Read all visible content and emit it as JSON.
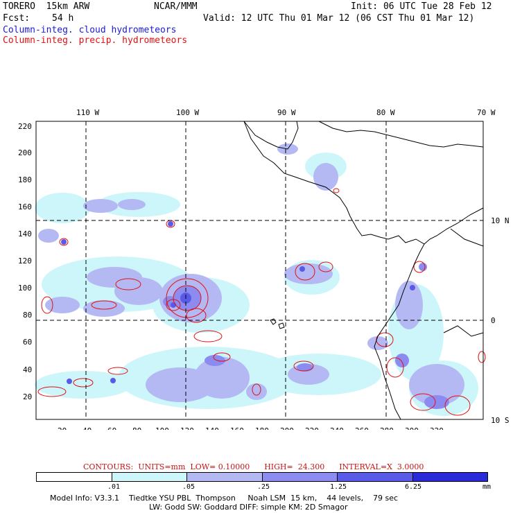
{
  "header": {
    "model": "TORERO  15km ARW",
    "org": "NCAR/MMM",
    "init": "Init: 06 UTC Tue 28 Feb 12",
    "fcst_label": "Fcst:",
    "fcst_value": "54 h",
    "valid": "Valid: 12 UTC Thu 01 Mar 12 (06 CST Thu 01 Mar 12)",
    "field1": "Column-integ. cloud hydrometeors",
    "field2": "Column-integ. precip. hydrometeors"
  },
  "map": {
    "top_lon_labels": [
      "110 W",
      "100 W",
      "90 W",
      "80 W",
      "70 W"
    ],
    "right_lat_labels": [
      "10 N",
      "0",
      "10 S"
    ],
    "left_ticks": [
      "220",
      "200",
      "180",
      "160",
      "140",
      "120",
      "100",
      "80",
      "60",
      "40",
      "20"
    ],
    "bottom_ticks": [
      "20",
      "40",
      "60",
      "80",
      "100",
      "120",
      "140",
      "160",
      "180",
      "200",
      "220",
      "240",
      "260",
      "280",
      "300",
      "320"
    ],
    "colors": {
      "c1": "#cdf6fa",
      "c2": "#b4b9f4",
      "c3": "#8c8cf0",
      "c4": "#5a5ae8",
      "c5": "#2a2ad8",
      "precip": "#e01010",
      "coast": "#000000"
    }
  },
  "contour_info": "CONTOURS:  UNITS=mm  LOW= 0.10000      HIGH=  24.300      INTERVAL=X  3.0000",
  "colorbar": {
    "labels": [
      ".01",
      ".05",
      ".25",
      "1.25",
      "6.25",
      "mm"
    ],
    "colors": [
      "#ffffff",
      "#cdf6fa",
      "#b4b9f4",
      "#8c8cf0",
      "#5a5ae8",
      "#2a2ad8"
    ]
  },
  "footer": {
    "line1": "Model Info: V3.3.1    Tiedtke YSU PBL  Thompson     Noah LSM  15 km,    44 levels,    79 sec",
    "line2": "LW: Godd SW: Goddard DIFF: simple KM: 2D Smagor"
  }
}
